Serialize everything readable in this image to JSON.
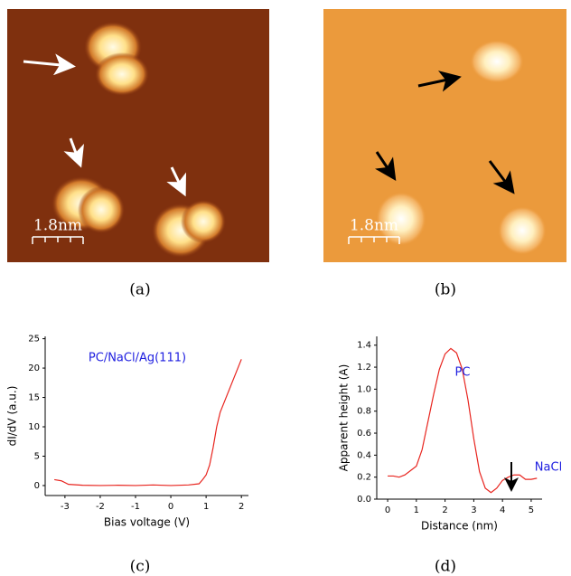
{
  "images": [
    {
      "label": "(a)",
      "scale_bar": "1.8nm"
    },
    {
      "label": "(b)",
      "scale_bar": "1.8nm"
    }
  ],
  "chart_data": [
    {
      "type": "line",
      "panel_label": "(c)",
      "annotation": "PC/NaCl/Ag(111)",
      "xlabel": "Bias voltage (V)",
      "ylabel": "dI/dV (a.u.)",
      "xlim": [
        -3.56,
        2.2
      ],
      "xticks": [
        -3,
        -2,
        -1,
        0,
        1,
        2
      ],
      "ylim": [
        -1.7,
        25.4
      ],
      "yticks": [
        0,
        5,
        10,
        15,
        20,
        25
      ],
      "x": [
        -3.3,
        -3.1,
        -2.9,
        -2.5,
        -2,
        -1.5,
        -1,
        -0.5,
        0,
        0.5,
        0.8,
        0.9,
        1.0,
        1.1,
        1.2,
        1.3,
        1.4,
        1.5,
        1.6,
        1.7,
        1.8,
        1.9,
        2.0
      ],
      "series": [
        {
          "color": "#e8251f",
          "values": [
            1.0,
            0.8,
            0.2,
            0.05,
            0.0,
            0.05,
            0.0,
            0.1,
            0.0,
            0.1,
            0.3,
            1.0,
            1.8,
            3.5,
            6.5,
            10,
            12.5,
            14,
            15.5,
            17,
            18.5,
            20,
            21.5
          ]
        }
      ]
    },
    {
      "type": "line",
      "panel_label": "(d)",
      "annotations": [
        "PC",
        "NaCl"
      ],
      "xlabel": "Distance (nm)",
      "ylabel": "Apparent height (A)",
      "xlim": [
        -0.38,
        5.38
      ],
      "xticks": [
        0,
        1,
        2,
        3,
        4,
        5
      ],
      "ylim": [
        0,
        1.48
      ],
      "yticks": [
        {
          "value": 0,
          "label": "0.0"
        },
        0.2,
        0.4,
        0.6,
        0.8,
        {
          "value": 1,
          "label": "1.0"
        },
        1.2,
        1.4
      ],
      "x": [
        0,
        0.2,
        0.4,
        0.6,
        0.8,
        1.0,
        1.2,
        1.4,
        1.6,
        1.8,
        2.0,
        2.2,
        2.4,
        2.6,
        2.8,
        3.0,
        3.2,
        3.4,
        3.6,
        3.8,
        4.0,
        4.2,
        4.4,
        4.6,
        4.8,
        5.0,
        5.2
      ],
      "series": [
        {
          "color": "#e8251f",
          "values": [
            0.21,
            0.21,
            0.2,
            0.22,
            0.26,
            0.3,
            0.45,
            0.7,
            0.95,
            1.18,
            1.32,
            1.37,
            1.33,
            1.18,
            0.9,
            0.55,
            0.25,
            0.1,
            0.06,
            0.1,
            0.17,
            0.2,
            0.22,
            0.22,
            0.18,
            0.18,
            0.19
          ]
        }
      ]
    }
  ]
}
